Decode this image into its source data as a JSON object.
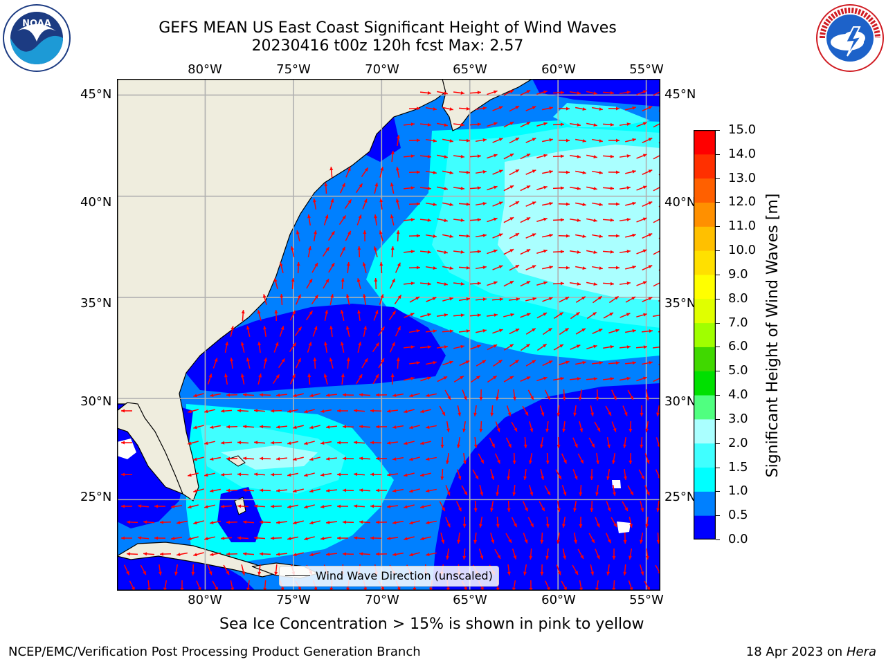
{
  "title": {
    "line1": "GEFS MEAN US East Coast Significant Height of Wind Waves",
    "line2": "20230416 t00z 120h fcst   Max: 2.57"
  },
  "logos": {
    "left": {
      "text": "NOAA",
      "ring": "NATIONAL OCEANIC AND ATMOSPHERIC ADMINISTRATION · U.S. DEPARTMENT OF COMMERCE"
    },
    "right": {
      "ring": "NATIONAL WEATHER SERVICE"
    }
  },
  "axes": {
    "lon_labels": [
      "80°W",
      "75°W",
      "70°W",
      "65°W",
      "60°W",
      "55°W"
    ],
    "lat_labels": [
      "45°N",
      "40°N",
      "35°N",
      "30°N",
      "25°N"
    ],
    "extent": {
      "lon_min": -85,
      "lon_max": -54.2,
      "lat_min": 20.5,
      "lat_max": 45.8
    }
  },
  "colorbar": {
    "label": "Significant Height of Wind Waves [m]",
    "ticks": [
      "15.0",
      "14.0",
      "13.0",
      "12.0",
      "11.0",
      "10.0",
      "9.0",
      "8.0",
      "7.0",
      "6.0",
      "5.0",
      "4.0",
      "3.0",
      "2.0",
      "1.5",
      "1.0",
      "0.5",
      "0.0"
    ],
    "levels": [
      0,
      0.5,
      1,
      1.5,
      2,
      3,
      4,
      5,
      6,
      7,
      8,
      9,
      10,
      11,
      12,
      13,
      14,
      15
    ],
    "colors": [
      "#0000ff",
      "#0080ff",
      "#00ffff",
      "#40ffff",
      "#aaffff",
      "#50ff80",
      "#00e000",
      "#40d800",
      "#a0ff00",
      "#e0ff00",
      "#ffff00",
      "#ffe000",
      "#ffc000",
      "#ff9000",
      "#ff6000",
      "#ff3000",
      "#ff0000"
    ]
  },
  "legend": {
    "label": "Wind Wave Direction (unscaled)"
  },
  "caption": "Sea Ice Concentration > 15% is shown in pink to yellow",
  "footer": {
    "left": "NCEP/EMC/Verification Post Processing Product Generation Branch",
    "right_date": "18 Apr 2023 on ",
    "right_system": "Hera"
  },
  "colors": {
    "land": "#efedde",
    "arrow": "#ff0000",
    "grid": "#b0b0b0"
  }
}
